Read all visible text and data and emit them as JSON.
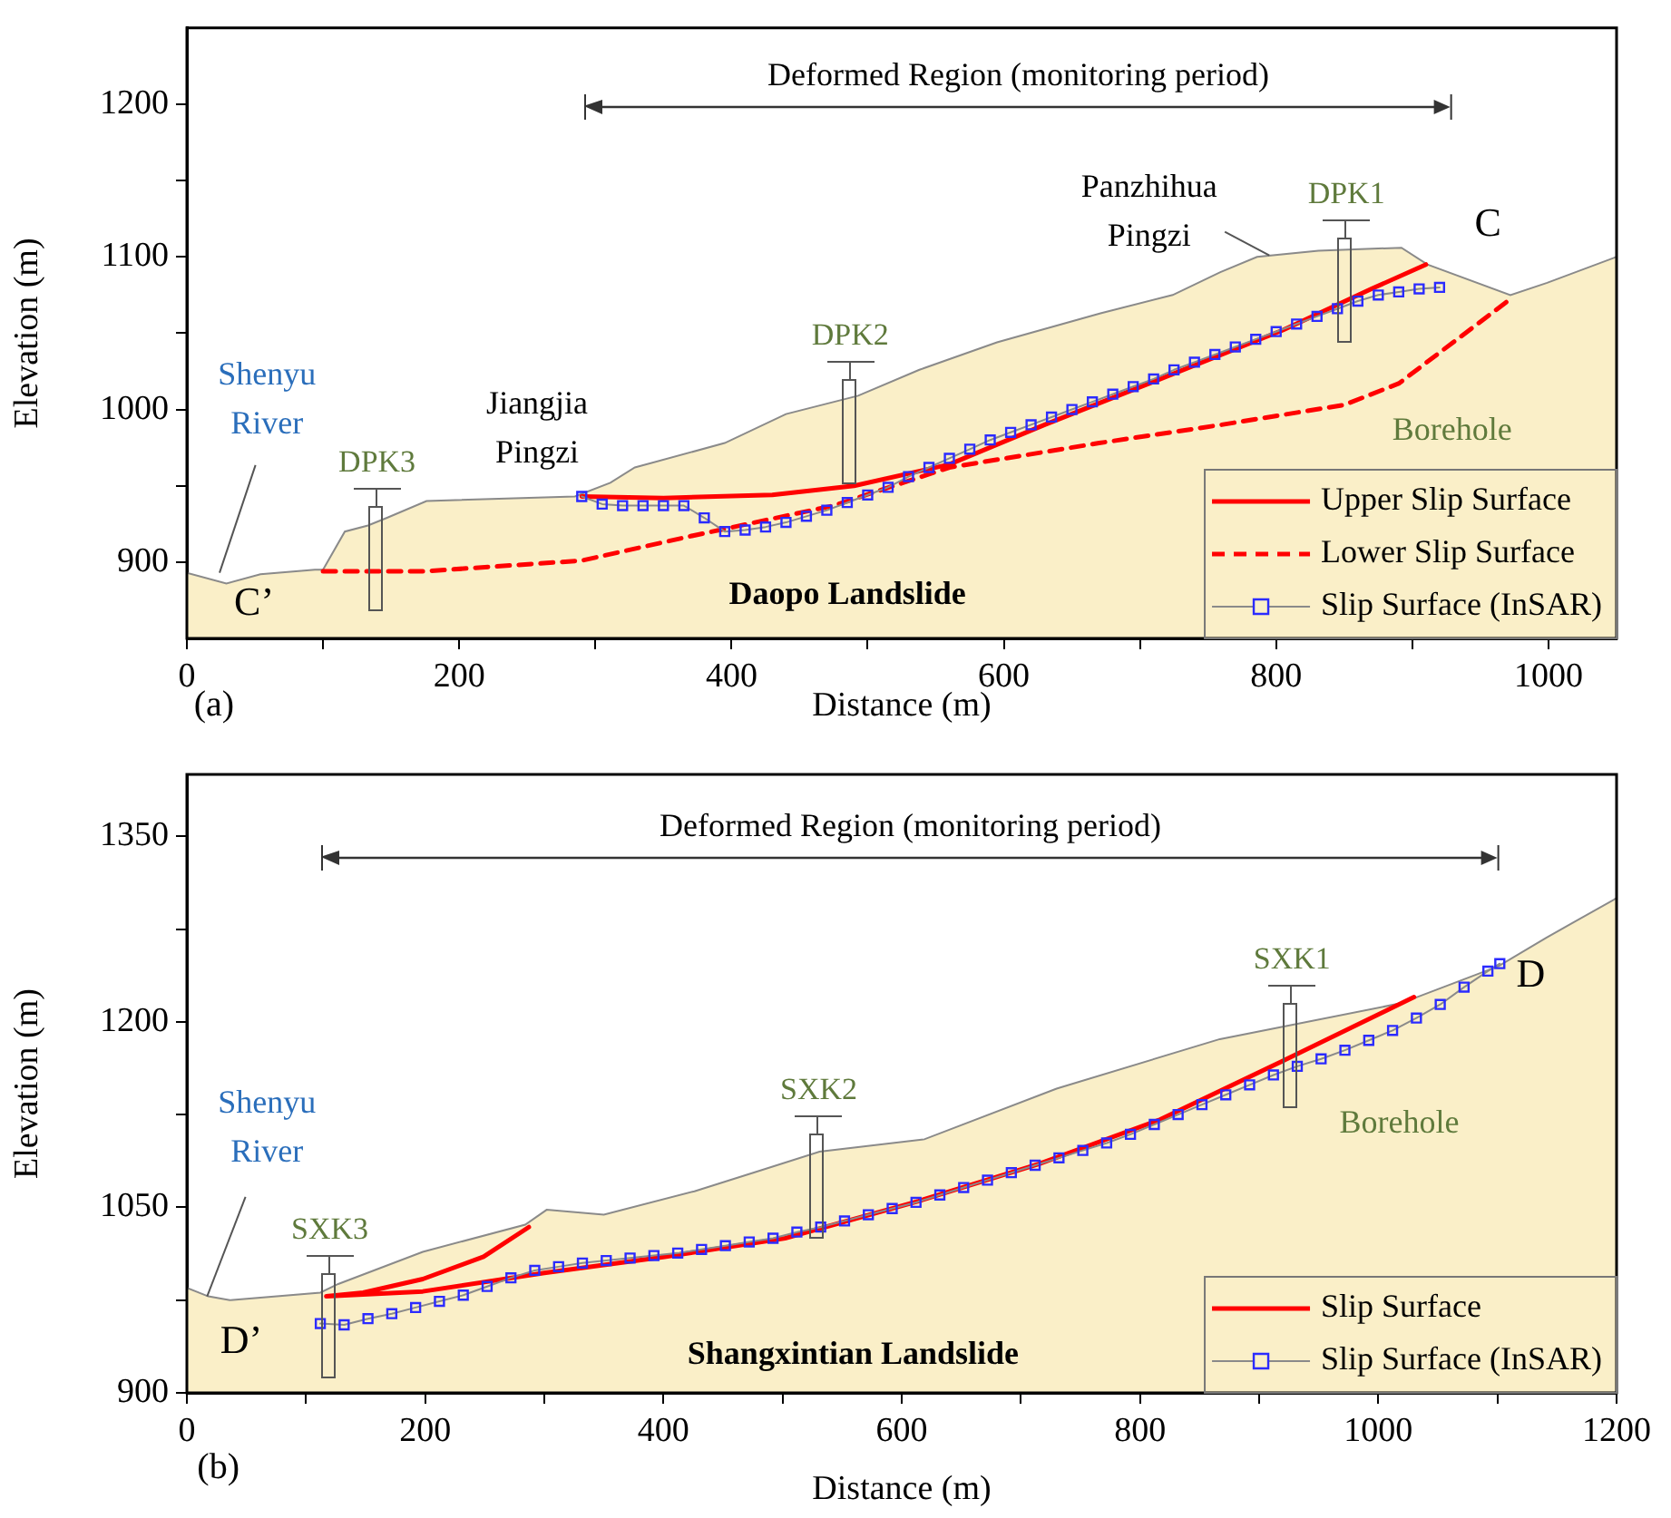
{
  "chart_data": [
    {
      "type": "line",
      "xlabel": "Distance (m)",
      "ylabel": "Elevation (m)",
      "xlim": [
        0,
        1050
      ],
      "xticks": [
        0,
        {
          "value": 100,
          "label": null
        },
        200,
        {
          "value": 300,
          "label": null
        },
        400,
        {
          "value": 500,
          "label": null
        },
        600,
        {
          "value": 700,
          "label": null
        },
        800,
        {
          "value": 900,
          "label": null
        },
        1000
      ],
      "ylim": [
        850,
        1250
      ],
      "yticks": [
        900,
        {
          "value": 950,
          "label": null
        },
        1000,
        {
          "value": 1050,
          "label": null
        },
        1100,
        {
          "value": 1150,
          "label": null
        },
        1200
      ],
      "legend": "bottom right",
      "series": [
        {
          "type": "area",
          "color": "#faefc8",
          "x": [
            0,
            29,
            54,
            94,
            100,
            116,
            133,
            147,
            176,
            285,
            311,
            329,
            395,
            440,
            493,
            538,
            595,
            671,
            724,
            759,
            786,
            831,
            892,
            911,
            972,
            999,
            1050
          ],
          "values": [
            893,
            886,
            892,
            895,
            895,
            920,
            924,
            929,
            940,
            943,
            952,
            962,
            978,
            997,
            1009,
            1026,
            1044,
            1063,
            1075,
            1090,
            1100,
            1104,
            1106,
            1095,
            1075,
            1083,
            1100
          ]
        },
        {
          "type": "line",
          "name": "Upper Slip Surface",
          "color": "#ff0000",
          "line_style": "solid",
          "x": [
            290,
            350,
            430,
            490,
            560,
            630,
            715,
            805,
            870,
            910
          ],
          "values": [
            943,
            942,
            944,
            950,
            964,
            990,
            1020,
            1052,
            1079,
            1095
          ]
        },
        {
          "type": "line",
          "name": "Lower Slip Surface",
          "color": "#ff0000",
          "line_style": "dashed",
          "x": [
            100,
            175,
            290,
            370,
            475,
            560,
            670,
            760,
            850,
            890,
            930,
            970
          ],
          "values": [
            894,
            894,
            901,
            917,
            937,
            962,
            978,
            990,
            1003,
            1017,
            1044,
            1071
          ]
        },
        {
          "type": "line",
          "name": "Slip Surface (InSAR)",
          "color": "#2b2bff",
          "marker": "square",
          "x": [
            290,
            305,
            320,
            335,
            350,
            365,
            380,
            395,
            410,
            425,
            440,
            455,
            470,
            485,
            500,
            515,
            530,
            545,
            560,
            575,
            590,
            605,
            620,
            635,
            650,
            665,
            680,
            695,
            710,
            725,
            740,
            755,
            770,
            785,
            800,
            815,
            830,
            845,
            860,
            875,
            890,
            905,
            920
          ],
          "values": [
            943,
            938,
            937,
            937,
            937,
            937,
            929,
            920,
            921,
            923,
            926,
            930,
            934,
            939,
            944,
            949,
            956,
            962,
            968,
            974,
            980,
            985,
            990,
            995,
            1000,
            1005,
            1010,
            1015,
            1020,
            1026,
            1031,
            1036,
            1041,
            1046,
            1051,
            1056,
            1061,
            1066,
            1071,
            1075,
            1077,
            1079,
            1080
          ]
        }
      ],
      "annotations": [
        "Deformed Region (monitoring period)",
        "DPK3",
        "DPK2",
        "DPK1",
        {
          "text": "Shenyu River",
          "x": 24,
          "y": 893
        },
        "Jiangjia Pingzi",
        {
          "text": "Panzhihua Pingzi",
          "x": 795,
          "y": 1101
        },
        "C",
        "C’",
        "Borehole",
        "Daopo Landslide",
        "(a)"
      ]
    },
    {
      "type": "line",
      "xlabel": "Distance (m)",
      "ylabel": "Elevation (m)",
      "xlim": [
        0,
        1200
      ],
      "xticks": [
        0,
        {
          "value": 100,
          "label": null
        },
        200,
        {
          "value": 300,
          "label": null
        },
        400,
        {
          "value": 500,
          "label": null
        },
        600,
        {
          "value": 700,
          "label": null
        },
        800,
        {
          "value": 900,
          "label": null
        },
        1000,
        {
          "value": 1100,
          "label": null
        },
        1200
      ],
      "ylim": [
        900,
        1400
      ],
      "yticks": [
        900,
        {
          "value": 975,
          "label": null
        },
        1050,
        {
          "value": 1125,
          "label": null
        },
        1200,
        {
          "value": 1275,
          "label": null
        },
        1350
      ],
      "legend": "bottom right",
      "series": [
        {
          "type": "area",
          "color": "#faefc8",
          "x": [
            0,
            18,
            36,
            112,
            127,
            198,
            284,
            302,
            350,
            426,
            482,
            531,
            619,
            730,
            867,
            1019,
            1101,
            1141,
            1200
          ],
          "values": [
            985,
            978,
            975,
            981,
            988,
            1014,
            1036,
            1048,
            1044,
            1063,
            1080,
            1095,
            1105,
            1146,
            1186,
            1215,
            1245,
            1268,
            1300
          ]
        },
        {
          "type": "line",
          "name": "Slip Surface",
          "color": "#ff0000",
          "line_style": "solid",
          "x": [
            287,
            249,
            198,
            148,
            117,
            198,
            300,
            401,
            502,
            614,
            715,
            817,
            919,
            1030
          ],
          "values": [
            1034,
            1010,
            992,
            981,
            978,
            982,
            997,
            1010,
            1025,
            1055,
            1085,
            1121,
            1168,
            1220
          ]
        },
        {
          "type": "line",
          "name": "Slip Surface (InSAR)",
          "color": "#2b2bff",
          "marker": "square",
          "x": [
            112,
            132,
            152,
            172,
            192,
            212,
            232,
            252,
            272,
            292,
            312,
            332,
            352,
            372,
            392,
            412,
            432,
            452,
            472,
            492,
            512,
            532,
            552,
            572,
            592,
            612,
            632,
            652,
            672,
            692,
            712,
            732,
            752,
            772,
            792,
            812,
            832,
            852,
            872,
            892,
            912,
            932,
            952,
            972,
            992,
            1012,
            1032,
            1052,
            1072,
            1092,
            1102
          ],
          "values": [
            956,
            955,
            960,
            964,
            969,
            974,
            979,
            986,
            993,
            999,
            1002,
            1005,
            1007,
            1009,
            1011,
            1013,
            1016,
            1019,
            1022,
            1025,
            1030,
            1034,
            1039,
            1044,
            1049,
            1054,
            1060,
            1066,
            1072,
            1078,
            1084,
            1090,
            1096,
            1102,
            1109,
            1117,
            1125,
            1133,
            1141,
            1149,
            1157,
            1164,
            1170,
            1177,
            1185,
            1193,
            1203,
            1214,
            1228,
            1241,
            1247
          ]
        }
      ],
      "annotations": [
        "Deformed Region (monitoring period)",
        "SXK3",
        "SXK2",
        "SXK1",
        {
          "text": "Shenyu River",
          "x": 17,
          "y": 978
        },
        "D’",
        "D",
        "Borehole",
        "Shangxintian Landslide",
        "(b)"
      ]
    }
  ]
}
